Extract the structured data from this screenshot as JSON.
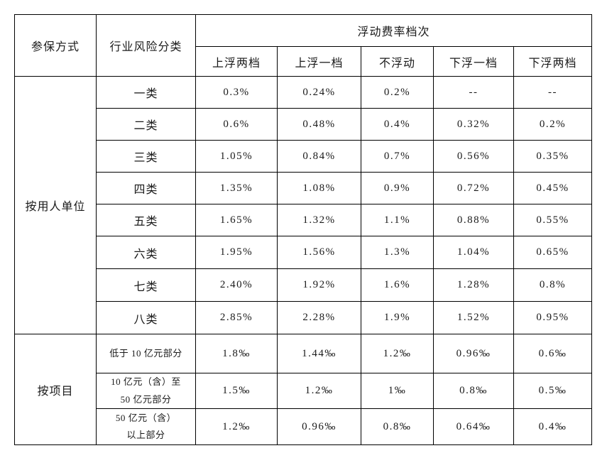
{
  "table": {
    "header": {
      "col1": "参保方式",
      "col2": "行业风险分类",
      "group": "浮动费率档次",
      "tiers": [
        "上浮两档",
        "上浮一档",
        "不浮动",
        "下浮一档",
        "下浮两档"
      ]
    },
    "sections": [
      {
        "label": "按用人单位",
        "rows": [
          {
            "category": "一类",
            "values": [
              "0.3%",
              "0.24%",
              "0.2%",
              "--",
              "--"
            ]
          },
          {
            "category": "二类",
            "values": [
              "0.6%",
              "0.48%",
              "0.4%",
              "0.32%",
              "0.2%"
            ]
          },
          {
            "category": "三类",
            "values": [
              "1.05%",
              "0.84%",
              "0.7%",
              "0.56%",
              "0.35%"
            ]
          },
          {
            "category": "四类",
            "values": [
              "1.35%",
              "1.08%",
              "0.9%",
              "0.72%",
              "0.45%"
            ]
          },
          {
            "category": "五类",
            "values": [
              "1.65%",
              "1.32%",
              "1.1%",
              "0.88%",
              "0.55%"
            ]
          },
          {
            "category": "六类",
            "values": [
              "1.95%",
              "1.56%",
              "1.3%",
              "1.04%",
              "0.65%"
            ]
          },
          {
            "category": "七类",
            "values": [
              "2.40%",
              "1.92%",
              "1.6%",
              "1.28%",
              "0.8%"
            ]
          },
          {
            "category": "八类",
            "values": [
              "2.85%",
              "2.28%",
              "1.9%",
              "1.52%",
              "0.95%"
            ]
          }
        ]
      },
      {
        "label": "按项目",
        "rows": [
          {
            "category": "低于 10 亿元部分",
            "values": [
              "1.8‰",
              "1.44‰",
              "1.2‰",
              "0.96‰",
              "0.6‰"
            ]
          },
          {
            "category": "10 亿元（含）至\n50 亿元部分",
            "values": [
              "1.5‰",
              "1.2‰",
              "1‰",
              "0.8‰",
              "0.5‰"
            ]
          },
          {
            "category": "50 亿元（含）\n以上部分",
            "values": [
              "1.2‰",
              "0.96‰",
              "0.8‰",
              "0.64‰",
              "0.4‰"
            ]
          }
        ]
      }
    ]
  }
}
